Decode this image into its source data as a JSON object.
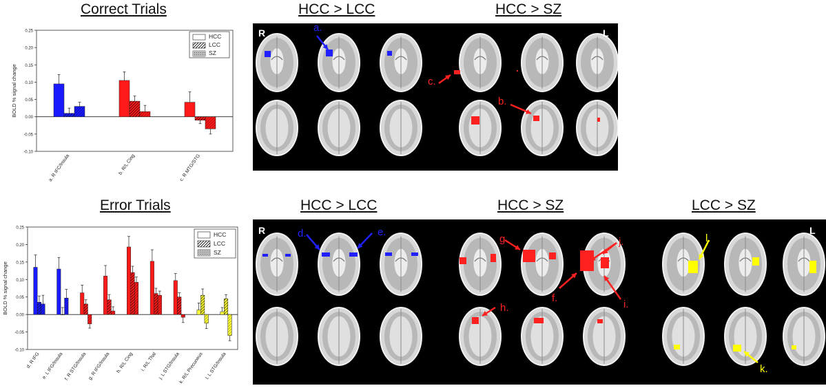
{
  "sections": {
    "correct_title": "Correct Trials",
    "error_title": "Error Trials",
    "row1_contrasts": [
      "HCC > LCC",
      "HCC > SZ"
    ],
    "row2_contrasts": [
      "HCC > LCC",
      "HCC > SZ",
      "LCC > SZ"
    ]
  },
  "orientation": {
    "right": "R",
    "left": "L"
  },
  "annotations_row1": [
    "a.",
    "b.",
    "c."
  ],
  "annotations_row2": [
    "d.",
    "e.",
    "g.",
    "j.",
    "h.",
    "f.",
    "i.",
    "l.",
    "k."
  ],
  "colors": {
    "blue": "#1a1aff",
    "red": "#ff1a1a",
    "yellow": "#ffff00",
    "black": "#000000"
  },
  "chart_data": [
    {
      "type": "bar",
      "title": "Correct Trials",
      "ylabel": "BOLD % signal change",
      "ylim": [
        -0.1,
        0.25
      ],
      "yticks": [
        "0.25",
        "0.20",
        "0.15",
        "0.10",
        "0.05",
        "0.00",
        "-0.05",
        "-0.10"
      ],
      "categories": [
        "a. R IFC/Insula",
        "b. R/L Cing",
        "c. R MTG/STG"
      ],
      "category_colors": [
        "#1a1aff",
        "#ff1a1a",
        "#ff1a1a"
      ],
      "legend": [
        "HCC",
        "LCC",
        "SZ"
      ],
      "series": [
        {
          "name": "HCC",
          "values": [
            0.095,
            0.105,
            0.042
          ],
          "errors": [
            0.027,
            0.025,
            0.03
          ]
        },
        {
          "name": "LCC",
          "values": [
            0.01,
            0.045,
            -0.01
          ],
          "errors": [
            0.015,
            0.015,
            0.01
          ]
        },
        {
          "name": "SZ",
          "values": [
            0.03,
            0.015,
            -0.035
          ],
          "errors": [
            0.012,
            0.018,
            0.015
          ]
        }
      ]
    },
    {
      "type": "bar",
      "title": "Error Trials",
      "ylabel": "BOLD % signal change",
      "ylim": [
        -0.1,
        0.25
      ],
      "yticks": [
        "0.25",
        "0.20",
        "0.15",
        "0.10",
        "0.05",
        "0.00",
        "-0.05",
        "-0.10"
      ],
      "categories": [
        "d. R IFG",
        "e. L IFG/Insula",
        "f. R STG/Insula",
        "g. R IFG/Insula",
        "h. R/L Cing",
        "i. R/L Thal",
        "j. L STG/Insula",
        "k. R/L Precuneus",
        "l. L STG/Insula"
      ],
      "category_colors": [
        "#1a1aff",
        "#1a1aff",
        "#ff1a1a",
        "#ff1a1a",
        "#ff1a1a",
        "#ff1a1a",
        "#ff1a1a",
        "#ffff33",
        "#ffff33"
      ],
      "legend": [
        "HCC",
        "LCC",
        "SZ"
      ],
      "series": [
        {
          "name": "HCC",
          "values": [
            0.135,
            0.13,
            0.062,
            0.11,
            0.193,
            0.152,
            0.097,
            0.013,
            0.008
          ],
          "errors": [
            0.035,
            0.033,
            0.022,
            0.03,
            0.03,
            0.033,
            0.02,
            0.02,
            0.012
          ]
        },
        {
          "name": "LCC",
          "values": [
            0.035,
            0.0,
            0.03,
            0.042,
            0.12,
            0.06,
            0.05,
            0.055,
            0.045
          ],
          "errors": [
            0.018,
            0.02,
            0.012,
            0.015,
            0.018,
            0.015,
            0.012,
            0.018,
            0.012
          ]
        },
        {
          "name": "SZ",
          "values": [
            0.03,
            0.047,
            -0.027,
            0.01,
            0.092,
            0.055,
            -0.008,
            -0.025,
            -0.06
          ],
          "errors": [
            0.025,
            0.025,
            0.012,
            0.012,
            0.015,
            0.012,
            0.015,
            0.015,
            0.015
          ]
        }
      ]
    }
  ]
}
